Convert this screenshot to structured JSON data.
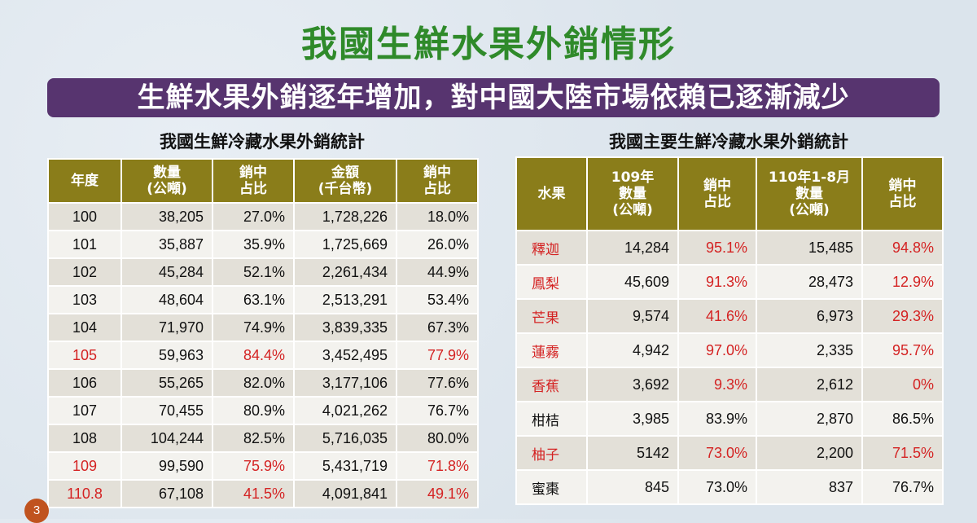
{
  "title": "我國生鮮水果外銷情形",
  "banner": "生鮮水果外銷逐年增加，對中國大陸市場依賴已逐漸減少",
  "page_number": "3",
  "table1": {
    "title": "我國生鮮冷藏水果外銷統計",
    "headers": [
      "年度",
      "數量\n(公噸)",
      "銷中\n占比",
      "金額\n(千台幣)",
      "銷中\n占比"
    ],
    "rows": [
      {
        "year": "100",
        "qty": "38,205",
        "qty_share": "27.0%",
        "amount": "1,728,226",
        "amount_share": "18.0%",
        "highlight": false
      },
      {
        "year": "101",
        "qty": "35,887",
        "qty_share": "35.9%",
        "amount": "1,725,669",
        "amount_share": "26.0%",
        "highlight": false
      },
      {
        "year": "102",
        "qty": "45,284",
        "qty_share": "52.1%",
        "amount": "2,261,434",
        "amount_share": "44.9%",
        "highlight": false
      },
      {
        "year": "103",
        "qty": "48,604",
        "qty_share": "63.1%",
        "amount": "2,513,291",
        "amount_share": "53.4%",
        "highlight": false
      },
      {
        "year": "104",
        "qty": "71,970",
        "qty_share": "74.9%",
        "amount": "3,839,335",
        "amount_share": "67.3%",
        "highlight": false
      },
      {
        "year": "105",
        "qty": "59,963",
        "qty_share": "84.4%",
        "amount": "3,452,495",
        "amount_share": "77.9%",
        "highlight": true
      },
      {
        "year": "106",
        "qty": "55,265",
        "qty_share": "82.0%",
        "amount": "3,177,106",
        "amount_share": "77.6%",
        "highlight": false
      },
      {
        "year": "107",
        "qty": "70,455",
        "qty_share": "80.9%",
        "amount": "4,021,262",
        "amount_share": "76.7%",
        "highlight": false
      },
      {
        "year": "108",
        "qty": "104,244",
        "qty_share": "82.5%",
        "amount": "5,716,035",
        "amount_share": "80.0%",
        "highlight": false
      },
      {
        "year": "109",
        "qty": "99,590",
        "qty_share": "75.9%",
        "amount": "5,431,719",
        "amount_share": "71.8%",
        "highlight": true
      },
      {
        "year": "110.8",
        "qty": "67,108",
        "qty_share": "41.5%",
        "amount": "4,091,841",
        "amount_share": "49.1%",
        "highlight": true
      }
    ]
  },
  "table2": {
    "title": "我國主要生鮮冷藏水果外銷統計",
    "headers": [
      "水果",
      "109年\n數量\n(公噸)",
      "銷中\n占比",
      "110年1-8月\n數量\n(公噸)",
      "銷中\n占比"
    ],
    "rows": [
      {
        "fruit": "釋迦",
        "qty109": "14,284",
        "share109": "95.1%",
        "qty110": "15,485",
        "share110": "94.8%",
        "highlight": true
      },
      {
        "fruit": "鳳梨",
        "qty109": "45,609",
        "share109": "91.3%",
        "qty110": "28,473",
        "share110": "12.9%",
        "highlight": true
      },
      {
        "fruit": "芒果",
        "qty109": "9,574",
        "share109": "41.6%",
        "qty110": "6,973",
        "share110": "29.3%",
        "highlight": true
      },
      {
        "fruit": "蓮霧",
        "qty109": "4,942",
        "share109": "97.0%",
        "qty110": "2,335",
        "share110": "95.7%",
        "highlight": true
      },
      {
        "fruit": "香蕉",
        "qty109": "3,692",
        "share109": "9.3%",
        "qty110": "2,612",
        "share110": "0%",
        "highlight": true
      },
      {
        "fruit": "柑桔",
        "qty109": "3,985",
        "share109": "83.9%",
        "qty110": "2,870",
        "share110": "86.5%",
        "highlight": false
      },
      {
        "fruit": "柚子",
        "qty109": "5142",
        "share109": "73.0%",
        "qty110": "2,200",
        "share110": "71.5%",
        "highlight": true
      },
      {
        "fruit": "蜜棗",
        "qty109": "845",
        "share109": "73.0%",
        "qty110": "837",
        "share110": "76.7%",
        "highlight": false
      }
    ]
  }
}
